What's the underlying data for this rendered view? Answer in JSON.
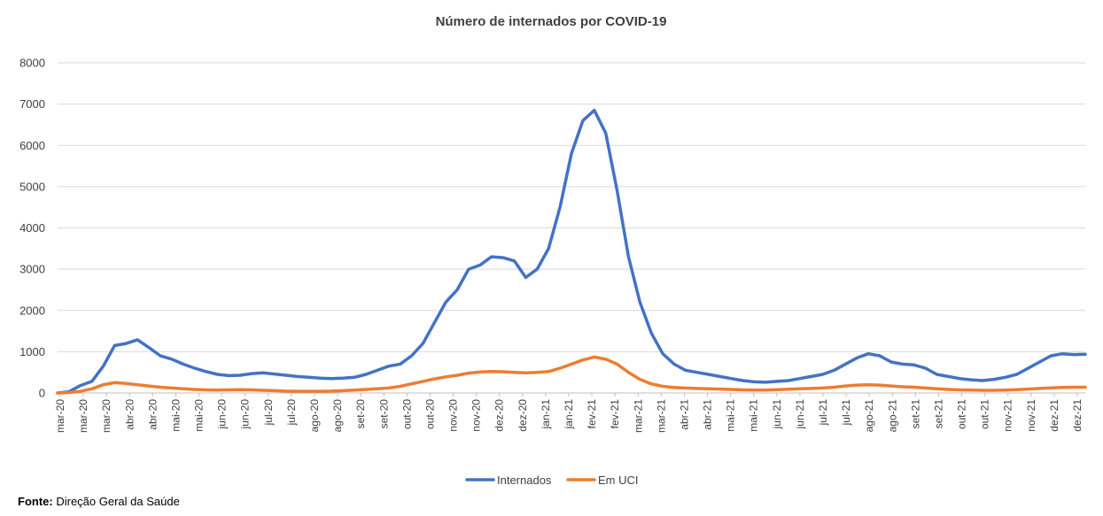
{
  "chart_data": {
    "type": "line",
    "title": "Número de internados por COVID-19",
    "xlabel": "",
    "ylabel": "",
    "ylim": [
      0,
      8000
    ],
    "yticks": [
      0,
      1000,
      2000,
      3000,
      4000,
      5000,
      6000,
      7000,
      8000
    ],
    "grid": true,
    "legend_position": "bottom",
    "x_tick_labels": [
      "mar-20",
      "mar-20",
      "mar-20",
      "abr-20",
      "abr-20",
      "mai-20",
      "mai-20",
      "jun-20",
      "jun-20",
      "jul-20",
      "jul-20",
      "ago-20",
      "ago-20",
      "set-20",
      "set-20",
      "out-20",
      "out-20",
      "nov-20",
      "nov-20",
      "dez-20",
      "dez-20",
      "jan-21",
      "jan-21",
      "fev-21",
      "fev-21",
      "mar-21",
      "mar-21",
      "abr-21",
      "abr-21",
      "mai-21",
      "mai-21",
      "jun-21",
      "jun-21",
      "jul-21",
      "jul-21",
      "ago-21",
      "ago-21",
      "set-21",
      "set-21",
      "out-21",
      "out-21",
      "nov-21",
      "nov-21",
      "dez-21",
      "dez-21"
    ],
    "series": [
      {
        "name": "Internados",
        "color": "#4472C4",
        "values": [
          0,
          30,
          180,
          280,
          650,
          1150,
          1200,
          1290,
          1100,
          900,
          820,
          700,
          600,
          520,
          450,
          420,
          430,
          470,
          490,
          460,
          430,
          400,
          380,
          360,
          350,
          360,
          380,
          450,
          550,
          650,
          700,
          900,
          1200,
          1700,
          2200,
          2500,
          3000,
          3100,
          3300,
          3280,
          3200,
          2800,
          3000,
          3500,
          4500,
          5800,
          6600,
          6850,
          6300,
          4900,
          3300,
          2200,
          1450,
          950,
          700,
          550,
          500,
          450,
          400,
          350,
          300,
          270,
          260,
          280,
          300,
          350,
          400,
          450,
          550,
          700,
          850,
          950,
          900,
          750,
          700,
          680,
          600,
          450,
          400,
          350,
          320,
          300,
          330,
          380,
          450,
          600,
          750,
          900,
          950,
          930,
          940
        ]
      },
      {
        "name": "Em UCI",
        "color": "#ED7D31",
        "values": [
          0,
          10,
          40,
          100,
          200,
          250,
          230,
          200,
          170,
          140,
          120,
          100,
          85,
          75,
          70,
          75,
          80,
          75,
          65,
          55,
          45,
          40,
          40,
          40,
          45,
          55,
          70,
          85,
          100,
          120,
          160,
          220,
          280,
          340,
          390,
          430,
          480,
          510,
          520,
          515,
          500,
          490,
          500,
          520,
          600,
          700,
          800,
          870,
          820,
          700,
          500,
          330,
          220,
          160,
          130,
          120,
          110,
          100,
          95,
          85,
          75,
          70,
          70,
          80,
          90,
          100,
          110,
          120,
          140,
          170,
          190,
          200,
          190,
          170,
          150,
          140,
          120,
          100,
          85,
          75,
          70,
          65,
          65,
          70,
          80,
          95,
          110,
          125,
          135,
          140,
          140
        ]
      }
    ]
  },
  "source": {
    "label": "Fonte:",
    "text": "Direção Geral da Saúde"
  }
}
